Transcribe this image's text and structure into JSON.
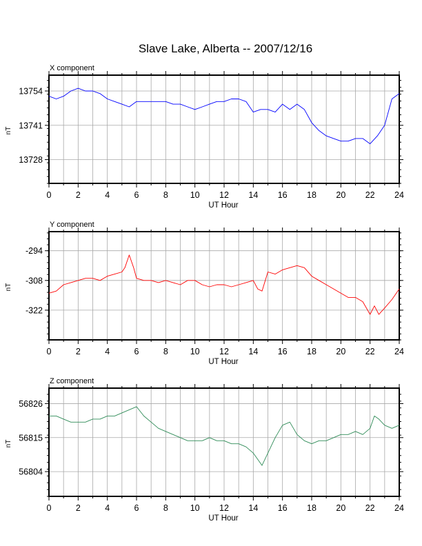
{
  "title": "Slave Lake, Alberta -- 2007/12/16",
  "chart_data": [
    {
      "type": "line",
      "title": "X component",
      "xlabel": "UT Hour",
      "ylabel": "nT",
      "xlim": [
        0,
        24
      ],
      "ylim": [
        13719,
        13760
      ],
      "yticks": [
        13728,
        13741,
        13754
      ],
      "xticks": [
        0,
        2,
        4,
        6,
        8,
        10,
        12,
        14,
        16,
        18,
        20,
        22,
        24
      ],
      "grid": true,
      "color": "#0000ff",
      "series": [
        {
          "x": [
            0,
            0.5,
            1,
            1.5,
            2,
            2.5,
            3,
            3.5,
            4,
            4.5,
            5,
            5.5,
            6,
            6.5,
            7,
            7.5,
            8,
            8.5,
            9,
            9.5,
            10,
            10.5,
            11,
            11.5,
            12,
            12.5,
            13,
            13.5,
            14,
            14.5,
            15,
            15.5,
            16,
            16.5,
            17,
            17.5,
            18,
            18.5,
            19,
            19.5,
            20,
            20.5,
            21,
            21.5,
            22,
            22.5,
            23,
            23.5,
            24
          ],
          "values": [
            13752,
            13751,
            13752,
            13754,
            13755,
            13754,
            13754,
            13753,
            13751,
            13750,
            13749,
            13748,
            13750,
            13750,
            13750,
            13750,
            13750,
            13749,
            13749,
            13748,
            13747,
            13748,
            13749,
            13750,
            13750,
            13751,
            13751,
            13750,
            13746,
            13747,
            13747,
            13746,
            13749,
            13747,
            13749,
            13747,
            13742,
            13739,
            13737,
            13736,
            13735,
            13735,
            13736,
            13736,
            13734,
            13737,
            13741,
            13751,
            13753
          ]
        }
      ]
    },
    {
      "type": "line",
      "title": "Y component",
      "xlabel": "UT Hour",
      "ylabel": "nT",
      "xlim": [
        0,
        24
      ],
      "ylim": [
        -336,
        -285
      ],
      "yticks": [
        -294,
        -308,
        -322
      ],
      "xticks": [
        0,
        2,
        4,
        6,
        8,
        10,
        12,
        14,
        16,
        18,
        20,
        22,
        24
      ],
      "grid": true,
      "color": "#ff0000",
      "series": [
        {
          "x": [
            0,
            0.5,
            1,
            1.5,
            2,
            2.5,
            3,
            3.5,
            4,
            4.5,
            5,
            5.2,
            5.5,
            5.8,
            6,
            6.5,
            7,
            7.5,
            8,
            8.5,
            9,
            9.5,
            10,
            10.5,
            11,
            11.5,
            12,
            12.5,
            13,
            13.5,
            14,
            14.3,
            14.6,
            15,
            15.5,
            16,
            16.5,
            17,
            17.5,
            18,
            18.5,
            19,
            19.5,
            20,
            20.5,
            21,
            21.5,
            22,
            22.3,
            22.6,
            23,
            23.5,
            24
          ],
          "values": [
            -314,
            -313,
            -310,
            -309,
            -308,
            -307,
            -307,
            -308,
            -306,
            -305,
            -304,
            -302,
            -296,
            -302,
            -307,
            -308,
            -308,
            -309,
            -308,
            -309,
            -310,
            -308,
            -308,
            -310,
            -311,
            -310,
            -310,
            -311,
            -310,
            -309,
            -308,
            -312,
            -313,
            -304,
            -305,
            -303,
            -302,
            -301,
            -302,
            -306,
            -308,
            -310,
            -312,
            -314,
            -316,
            -316,
            -318,
            -324,
            -320,
            -324,
            -321,
            -317,
            -312
          ]
        }
      ]
    },
    {
      "type": "line",
      "title": "Z component",
      "xlabel": "UT Hour",
      "ylabel": "nT",
      "xlim": [
        0,
        24
      ],
      "ylim": [
        56796,
        56831
      ],
      "yticks": [
        56804,
        56815,
        56826
      ],
      "xticks": [
        0,
        2,
        4,
        6,
        8,
        10,
        12,
        14,
        16,
        18,
        20,
        22,
        24
      ],
      "grid": true,
      "color": "#2e8b57",
      "series": [
        {
          "x": [
            0,
            0.5,
            1,
            1.5,
            2,
            2.5,
            3,
            3.5,
            4,
            4.5,
            5,
            5.5,
            6,
            6.5,
            7,
            7.5,
            8,
            8.5,
            9,
            9.5,
            10,
            10.5,
            11,
            11.5,
            12,
            12.5,
            13,
            13.5,
            14,
            14.3,
            14.6,
            15,
            15.5,
            16,
            16.5,
            17,
            17.5,
            18,
            18.5,
            19,
            19.5,
            20,
            20.5,
            21,
            21.5,
            22,
            22.3,
            22.6,
            23,
            23.5,
            24
          ],
          "values": [
            56822,
            56822,
            56821,
            56820,
            56820,
            56820,
            56821,
            56821,
            56822,
            56822,
            56823,
            56824,
            56825,
            56822,
            56820,
            56818,
            56817,
            56816,
            56815,
            56814,
            56814,
            56814,
            56815,
            56814,
            56814,
            56813,
            56813,
            56812,
            56810,
            56808,
            56806,
            56810,
            56815,
            56819,
            56820,
            56816,
            56814,
            56813,
            56814,
            56814,
            56815,
            56816,
            56816,
            56817,
            56816,
            56818,
            56822,
            56821,
            56819,
            56818,
            56819
          ]
        }
      ]
    }
  ]
}
